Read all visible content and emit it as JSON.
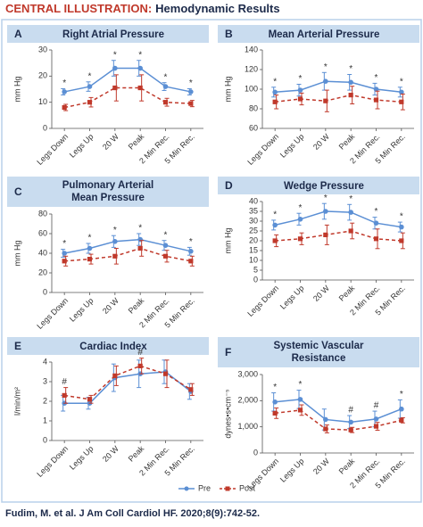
{
  "header": {
    "label": "CENTRAL ILLUSTRATION:",
    "title": "Hemodynamic Results"
  },
  "citation": "Fudim, M. et al. J Am Coll Cardiol HF. 2020;8(9):742-52.",
  "chart_data": [
    {
      "type": "line",
      "letter": "A",
      "title": "Right Atrial Pressure",
      "y_label": "mm Hg",
      "categories": [
        "Legs Down",
        "Legs Up",
        "20 W",
        "Peak",
        "2 Min Rec.",
        "5 Min Rec."
      ],
      "ylim": [
        0,
        30
      ],
      "yticks": [
        0,
        10,
        20,
        30
      ],
      "series": [
        {
          "name": "Pre",
          "color": "#5b8fd4",
          "values": [
            14,
            16,
            23,
            23,
            16,
            14
          ],
          "errors": [
            1.2,
            1.8,
            3,
            3,
            1.5,
            1.2
          ]
        },
        {
          "name": "Post",
          "color": "#c0392b",
          "values": [
            8,
            10,
            15.5,
            15.5,
            10,
            9.5
          ],
          "errors": [
            1.2,
            1.8,
            5,
            5,
            1.5,
            1.2
          ]
        }
      ],
      "markers": [
        "*",
        "*",
        "*",
        "*",
        "*",
        "*"
      ]
    },
    {
      "type": "line",
      "letter": "B",
      "title": "Mean Arterial Pressure",
      "y_label": "mm Hg",
      "categories": [
        "Legs Down",
        "Legs Up",
        "20 W",
        "Peak",
        "2 Min Rec.",
        "5 Min Rec."
      ],
      "ylim": [
        60,
        140
      ],
      "yticks": [
        60,
        80,
        100,
        120,
        140
      ],
      "series": [
        {
          "name": "Pre",
          "color": "#5b8fd4",
          "values": [
            97,
            99,
            108,
            107,
            100,
            97
          ],
          "errors": [
            5,
            6,
            9,
            8,
            6,
            5
          ]
        },
        {
          "name": "Post",
          "color": "#c0392b",
          "values": [
            87,
            90,
            88,
            94,
            89,
            87
          ],
          "errors": [
            7,
            6,
            11,
            9,
            9,
            8
          ]
        }
      ],
      "markers": [
        "*",
        "*",
        "*",
        "*",
        "*",
        "*"
      ]
    },
    {
      "type": "line",
      "letter": "C",
      "title": "Pulmonary Arterial Mean Pressure",
      "y_label": "mm Hg",
      "categories": [
        "Legs Down",
        "Legs Up",
        "20 W",
        "Peak",
        "2 Min Rec.",
        "5 Min Rec."
      ],
      "ylim": [
        0,
        80
      ],
      "yticks": [
        0,
        20,
        40,
        60,
        80
      ],
      "series": [
        {
          "name": "Pre",
          "color": "#5b8fd4",
          "values": [
            40,
            45,
            52,
            54,
            48,
            42
          ],
          "errors": [
            4,
            5,
            6,
            6,
            5,
            4
          ]
        },
        {
          "name": "Post",
          "color": "#c0392b",
          "values": [
            32,
            34,
            37,
            45,
            37,
            32
          ],
          "errors": [
            5,
            5,
            8,
            8,
            6,
            5
          ]
        }
      ],
      "markers": [
        "*",
        "*",
        "*",
        "*",
        "*",
        "*"
      ]
    },
    {
      "type": "line",
      "letter": "D",
      "title": "Wedge Pressure",
      "y_label": "mm Hg",
      "categories": [
        "Legs Down",
        "Legs Up",
        "20 W",
        "Peak",
        "2 Min Rec.",
        "5 Min Rec."
      ],
      "ylim": [
        0,
        40
      ],
      "yticks": [
        0,
        5,
        10,
        15,
        20,
        25,
        30,
        35,
        40
      ],
      "series": [
        {
          "name": "Pre",
          "color": "#5b8fd4",
          "values": [
            28,
            31,
            35,
            34.5,
            29,
            27
          ],
          "errors": [
            2.5,
            3,
            4,
            4,
            3,
            2.5
          ]
        },
        {
          "name": "Post",
          "color": "#c0392b",
          "values": [
            20,
            21,
            23,
            25,
            21,
            20
          ],
          "errors": [
            3,
            3,
            5,
            4,
            5,
            4
          ]
        }
      ],
      "markers": [
        "*",
        "*",
        "*",
        "*",
        "*",
        "*"
      ]
    },
    {
      "type": "line",
      "letter": "E",
      "title": "Cardiac Index",
      "y_label": "l/min/m²",
      "categories": [
        "Legs Down",
        "Legs Up",
        "20 W",
        "Peak",
        "2 Min Rec.",
        "5 Min Rec."
      ],
      "ylim": [
        0,
        4
      ],
      "yticks": [
        0,
        1,
        2,
        3,
        4
      ],
      "series": [
        {
          "name": "Pre",
          "color": "#5b8fd4",
          "values": [
            1.9,
            1.9,
            3.2,
            3.4,
            3.5,
            2.5
          ],
          "errors": [
            0.4,
            0.3,
            0.7,
            0.7,
            0.6,
            0.4
          ]
        },
        {
          "name": "Post",
          "color": "#c0392b",
          "values": [
            2.3,
            2.1,
            3.3,
            3.8,
            3.4,
            2.6
          ],
          "errors": [
            0.4,
            0.2,
            0.5,
            0.4,
            0.7,
            0.3
          ]
        }
      ],
      "markers": [
        "#",
        null,
        null,
        "#",
        null,
        null
      ]
    },
    {
      "type": "line",
      "letter": "F",
      "title": "Systemic Vascular Resistance",
      "y_label": "dynes•s•cm⁻⁵",
      "categories": [
        "Legs Down",
        "Legs Up",
        "20 W",
        "Peak",
        "2 Min Rec.",
        "5 Min Rec."
      ],
      "ylim": [
        0,
        3000
      ],
      "yticks": [
        0,
        {
          "value": 1000,
          "label": "1,000"
        },
        {
          "value": 2000,
          "label": "2,000"
        },
        {
          "value": 3000,
          "label": "3,000"
        }
      ],
      "series": [
        {
          "name": "Pre",
          "color": "#5b8fd4",
          "values": [
            1950,
            2050,
            1280,
            1180,
            1300,
            1680
          ],
          "errors": [
            350,
            350,
            400,
            250,
            300,
            350
          ]
        },
        {
          "name": "Post",
          "color": "#c0392b",
          "values": [
            1520,
            1640,
            920,
            880,
            1020,
            1250
          ],
          "errors": [
            200,
            200,
            150,
            100,
            150,
            100
          ]
        }
      ],
      "markers": [
        "*",
        "*",
        null,
        "#",
        "#",
        "*"
      ]
    }
  ]
}
